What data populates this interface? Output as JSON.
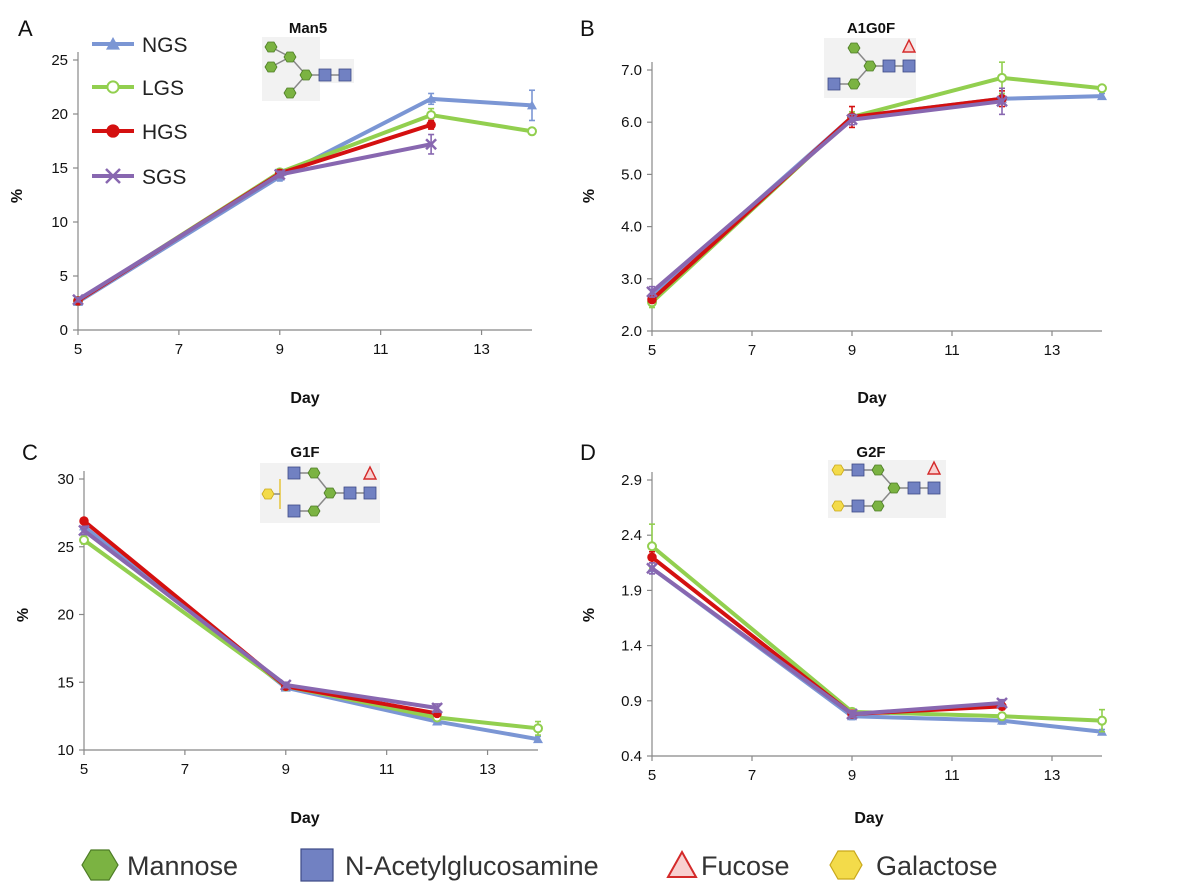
{
  "series_colors": {
    "NGS": "#7b96d4",
    "LGS": "#92cf4f",
    "HGS": "#d41010",
    "SGS": "#8867b0"
  },
  "legend": {
    "items": [
      {
        "name": "NGS",
        "marker": "triangle"
      },
      {
        "name": "LGS",
        "marker": "open-circle"
      },
      {
        "name": "HGS",
        "marker": "filled-circle"
      },
      {
        "name": "SGS",
        "marker": "x"
      }
    ]
  },
  "bottom_legend": {
    "items": [
      {
        "label": "Mannose",
        "icon": "green-hexagon-icon",
        "color": "#7bb342"
      },
      {
        "label": "N-Acetylglucosamine",
        "icon": "blue-square-icon",
        "color": "#7181c2"
      },
      {
        "label": "Fucose",
        "icon": "red-triangle-icon",
        "color": "#e05a5a"
      },
      {
        "label": "Galactose",
        "icon": "yellow-hexagon-icon",
        "color": "#f3db4a"
      }
    ]
  },
  "chart_data": [
    {
      "panel": "A",
      "type": "line",
      "title": "Man5",
      "xlabel": "Day",
      "ylabel": "%",
      "xlim": [
        5,
        14
      ],
      "ylim": [
        0,
        25
      ],
      "xticks": [
        5,
        7,
        9,
        11,
        13
      ],
      "yticks": [
        0,
        5,
        10,
        15,
        20,
        25
      ],
      "ytick_labels": [
        "0",
        "5",
        "10",
        "15",
        "20",
        "25"
      ],
      "legend_position": "top-left",
      "series": [
        {
          "name": "NGS",
          "x": [
            5,
            9,
            12,
            14
          ],
          "y": [
            2.6,
            14.2,
            21.4,
            20.8
          ],
          "err": [
            0.3,
            0.4,
            0.5,
            1.4
          ]
        },
        {
          "name": "LGS",
          "x": [
            5,
            9,
            12,
            14
          ],
          "y": [
            2.7,
            14.6,
            19.9,
            18.4
          ],
          "err": [
            0.2,
            0.3,
            0.6,
            0.3
          ]
        },
        {
          "name": "HGS",
          "x": [
            5,
            9,
            12
          ],
          "y": [
            2.7,
            14.5,
            19.0
          ],
          "err": [
            0.2,
            0.3,
            0.4
          ]
        },
        {
          "name": "SGS",
          "x": [
            5,
            9,
            12
          ],
          "y": [
            2.8,
            14.4,
            17.2
          ],
          "err": [
            0.2,
            0.3,
            0.9
          ]
        }
      ]
    },
    {
      "panel": "B",
      "type": "line",
      "title": "A1G0F",
      "xlabel": "Day",
      "ylabel": "%",
      "xlim": [
        5,
        14
      ],
      "ylim": [
        2.0,
        7.0
      ],
      "xticks": [
        5,
        7,
        9,
        11,
        13
      ],
      "yticks": [
        2,
        3,
        4,
        5,
        6,
        7
      ],
      "ytick_labels": [
        "2.0",
        "3.0",
        "4.0",
        "5.0",
        "6.0",
        "7.0"
      ],
      "series": [
        {
          "name": "NGS",
          "x": [
            5,
            9,
            12,
            14
          ],
          "y": [
            2.7,
            6.1,
            6.45,
            6.5
          ],
          "err": [
            0.1,
            0.1,
            0.1,
            0.05
          ]
        },
        {
          "name": "LGS",
          "x": [
            5,
            9,
            12,
            14
          ],
          "y": [
            2.55,
            6.1,
            6.85,
            6.65
          ],
          "err": [
            0.1,
            0.1,
            0.3,
            0.05
          ]
        },
        {
          "name": "HGS",
          "x": [
            5,
            9,
            12
          ],
          "y": [
            2.6,
            6.1,
            6.45
          ],
          "err": [
            0.05,
            0.2,
            0.15
          ]
        },
        {
          "name": "SGS",
          "x": [
            5,
            9,
            12
          ],
          "y": [
            2.75,
            6.05,
            6.4
          ],
          "err": [
            0.1,
            0.1,
            0.25
          ]
        }
      ]
    },
    {
      "panel": "C",
      "type": "line",
      "title": "G1F",
      "xlabel": "Day",
      "ylabel": "%",
      "xlim": [
        5,
        14
      ],
      "ylim": [
        10,
        30
      ],
      "xticks": [
        5,
        7,
        9,
        11,
        13
      ],
      "yticks": [
        10,
        15,
        20,
        25,
        30
      ],
      "ytick_labels": [
        "10",
        "15",
        "20",
        "25",
        "30"
      ],
      "series": [
        {
          "name": "NGS",
          "x": [
            5,
            9,
            12,
            14
          ],
          "y": [
            26.5,
            14.6,
            12.1,
            10.8
          ],
          "err": [
            0.3,
            0.2,
            0.2,
            0.2
          ]
        },
        {
          "name": "LGS",
          "x": [
            5,
            9,
            12,
            14
          ],
          "y": [
            25.5,
            14.7,
            12.4,
            11.6
          ],
          "err": [
            0.3,
            0.2,
            0.2,
            0.5
          ]
        },
        {
          "name": "HGS",
          "x": [
            5,
            9,
            12
          ],
          "y": [
            26.9,
            14.7,
            12.7
          ],
          "err": [
            0.2,
            0.2,
            0.2
          ]
        },
        {
          "name": "SGS",
          "x": [
            5,
            9,
            12
          ],
          "y": [
            26.2,
            14.8,
            13.1
          ],
          "err": [
            0.3,
            0.2,
            0.3
          ]
        }
      ]
    },
    {
      "panel": "D",
      "type": "line",
      "title": "G2F",
      "xlabel": "Day",
      "ylabel": "%",
      "xlim": [
        5,
        14
      ],
      "ylim": [
        0.4,
        2.9
      ],
      "xticks": [
        5,
        7,
        9,
        11,
        13
      ],
      "yticks": [
        0.4,
        0.9,
        1.4,
        1.9,
        2.4,
        2.9
      ],
      "ytick_labels": [
        "0.4",
        "0.9",
        "1.4",
        "1.9",
        "2.4",
        "2.9"
      ],
      "series": [
        {
          "name": "NGS",
          "x": [
            5,
            9,
            12,
            14
          ],
          "y": [
            2.1,
            0.76,
            0.72,
            0.62
          ],
          "err": [
            0.05,
            0.03,
            0.03,
            0.02
          ]
        },
        {
          "name": "LGS",
          "x": [
            5,
            9,
            12,
            14
          ],
          "y": [
            2.3,
            0.8,
            0.76,
            0.72
          ],
          "err": [
            0.2,
            0.03,
            0.03,
            0.1
          ]
        },
        {
          "name": "HGS",
          "x": [
            5,
            9,
            12
          ],
          "y": [
            2.2,
            0.78,
            0.85
          ],
          "err": [
            0.05,
            0.03,
            0.03
          ]
        },
        {
          "name": "SGS",
          "x": [
            5,
            9,
            12
          ],
          "y": [
            2.1,
            0.78,
            0.88
          ],
          "err": [
            0.05,
            0.03,
            0.03
          ]
        }
      ]
    }
  ]
}
